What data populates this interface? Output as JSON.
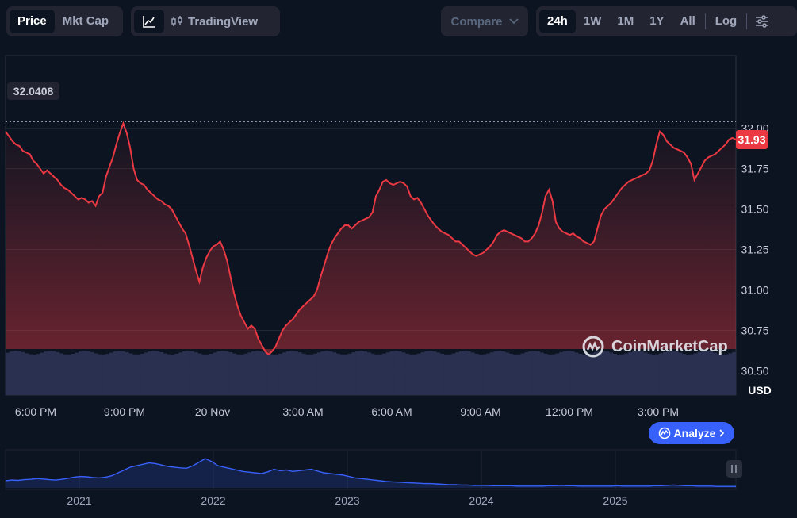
{
  "toolbar": {
    "mode_tabs": [
      "Price",
      "Mkt Cap"
    ],
    "tradingview_label": "TradingView",
    "compare_label": "Compare",
    "ranges": [
      "24h",
      "1W",
      "1M",
      "1Y",
      "All"
    ],
    "log_label": "Log"
  },
  "watermark": "CoinMarketCap",
  "analyze_label": "Analyze",
  "colors": {
    "background": "#0d1421",
    "line": "#ea3943",
    "accent": "#3861fb",
    "volume": "#2a3150"
  },
  "icons": [
    "line-chart-icon",
    "candlestick-icon",
    "chevron-down-icon",
    "settings-sliders-icon",
    "coinmarketcap-logo-icon",
    "chevron-right-icon",
    "pause-handle-icon"
  ],
  "chart_data": {
    "type": "line",
    "currency_label": "USD",
    "y_ticks": [
      "30.50",
      "30.75",
      "31.00",
      "31.25",
      "31.50",
      "31.75",
      "32.00"
    ],
    "ylim": [
      30.35,
      32.45
    ],
    "x_ticks": [
      "6:00 PM",
      "9:00 PM",
      "20 Nov",
      "3:00 AM",
      "6:00 AM",
      "9:00 AM",
      "12:00 PM",
      "3:00 PM"
    ],
    "high_label": "32.0408",
    "current_label": "31.93",
    "current_value": 31.93,
    "high_value": 32.04,
    "grid": true,
    "values": [
      31.98,
      31.95,
      31.92,
      31.9,
      31.89,
      31.86,
      31.85,
      31.84,
      31.8,
      31.78,
      31.75,
      31.72,
      31.74,
      31.72,
      31.7,
      31.68,
      31.65,
      31.63,
      31.62,
      31.6,
      31.58,
      31.56,
      31.57,
      31.56,
      31.54,
      31.55,
      31.52,
      31.58,
      31.6,
      31.7,
      31.76,
      31.82,
      31.9,
      31.97,
      32.03,
      31.97,
      31.88,
      31.75,
      31.68,
      31.66,
      31.65,
      31.62,
      31.6,
      31.58,
      31.56,
      31.55,
      31.53,
      31.52,
      31.5,
      31.46,
      31.42,
      31.38,
      31.35,
      31.28,
      31.2,
      31.12,
      31.05,
      31.14,
      31.2,
      31.24,
      31.27,
      31.28,
      31.3,
      31.25,
      31.18,
      31.08,
      30.98,
      30.9,
      30.84,
      30.8,
      30.76,
      30.78,
      30.76,
      30.7,
      30.66,
      30.62,
      30.6,
      30.62,
      30.65,
      30.7,
      30.75,
      30.78,
      30.8,
      30.82,
      30.85,
      30.88,
      30.9,
      30.92,
      30.94,
      30.96,
      31.0,
      31.08,
      31.15,
      31.22,
      31.28,
      31.32,
      31.35,
      31.38,
      31.4,
      31.4,
      31.38,
      31.4,
      31.42,
      31.43,
      31.44,
      31.45,
      31.48,
      31.58,
      31.62,
      31.67,
      31.68,
      31.66,
      31.65,
      31.66,
      31.67,
      31.66,
      31.64,
      31.58,
      31.56,
      31.57,
      31.54,
      31.5,
      31.46,
      31.43,
      31.4,
      31.38,
      31.36,
      31.35,
      31.34,
      31.32,
      31.3,
      31.3,
      31.28,
      31.26,
      31.24,
      31.22,
      31.21,
      31.22,
      31.23,
      31.25,
      31.27,
      31.3,
      31.34,
      31.36,
      31.37,
      31.36,
      31.35,
      31.34,
      31.33,
      31.32,
      31.3,
      31.3,
      31.32,
      31.35,
      31.4,
      31.48,
      31.58,
      31.62,
      31.55,
      31.42,
      31.38,
      31.36,
      31.35,
      31.34,
      31.35,
      31.33,
      31.32,
      31.3,
      31.29,
      31.28,
      31.3,
      31.38,
      31.46,
      31.5,
      31.52,
      31.54,
      31.57,
      31.6,
      31.63,
      31.65,
      31.67,
      31.68,
      31.69,
      31.7,
      31.71,
      31.72,
      31.74,
      31.8,
      31.9,
      31.98,
      31.96,
      31.92,
      31.9,
      31.88,
      31.87,
      31.86,
      31.85,
      31.82,
      31.78,
      31.68,
      31.72,
      31.76,
      31.8,
      31.82,
      31.83,
      31.84,
      31.86,
      31.88,
      31.9,
      31.93,
      31.94,
      31.93
    ],
    "volume_level": 0.92,
    "overview": {
      "x_ticks": [
        "2021",
        "2022",
        "2023",
        "2024",
        "2025"
      ],
      "values": [
        0.2,
        0.22,
        0.21,
        0.23,
        0.24,
        0.26,
        0.25,
        0.23,
        0.22,
        0.24,
        0.27,
        0.3,
        0.32,
        0.31,
        0.29,
        0.28,
        0.3,
        0.34,
        0.42,
        0.5,
        0.58,
        0.62,
        0.66,
        0.7,
        0.68,
        0.64,
        0.6,
        0.58,
        0.56,
        0.55,
        0.62,
        0.72,
        0.82,
        0.74,
        0.62,
        0.58,
        0.54,
        0.5,
        0.46,
        0.44,
        0.42,
        0.4,
        0.45,
        0.52,
        0.48,
        0.5,
        0.46,
        0.48,
        0.5,
        0.52,
        0.47,
        0.42,
        0.4,
        0.38,
        0.36,
        0.32,
        0.28,
        0.26,
        0.24,
        0.22,
        0.2,
        0.18,
        0.17,
        0.16,
        0.15,
        0.14,
        0.13,
        0.12,
        0.12,
        0.11,
        0.1,
        0.09,
        0.09,
        0.08,
        0.08,
        0.07,
        0.07,
        0.07,
        0.06,
        0.06,
        0.06,
        0.06,
        0.05,
        0.05,
        0.05,
        0.05,
        0.05,
        0.06,
        0.06,
        0.07,
        0.06,
        0.06,
        0.05,
        0.05,
        0.05,
        0.05,
        0.05,
        0.05,
        0.06,
        0.05,
        0.05,
        0.05,
        0.05,
        0.05,
        0.06,
        0.06,
        0.07,
        0.08,
        0.07,
        0.06,
        0.06,
        0.05,
        0.05,
        0.05,
        0.04,
        0.04,
        0.04,
        0.04
      ]
    }
  }
}
